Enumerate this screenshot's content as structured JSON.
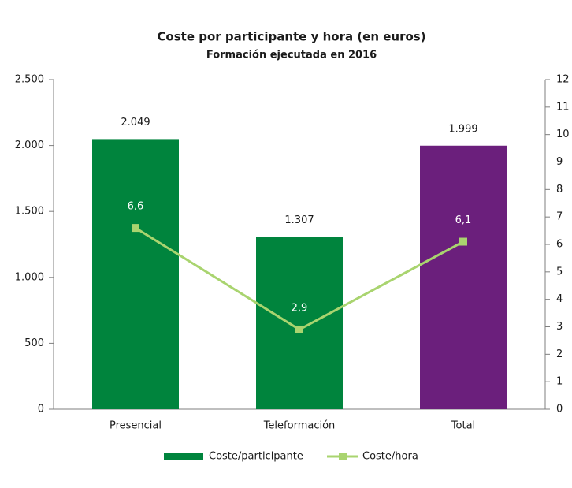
{
  "chart_data": {
    "type": "bar",
    "title": "Coste por participante y hora (en euros)",
    "subtitle": "Formación ejecutada en 2016",
    "categories": [
      "Presencial",
      "Teleformación",
      "Total"
    ],
    "series": [
      {
        "name": "Coste/participante",
        "color": "#00843d",
        "colors": [
          "#00843d",
          "#00843d",
          "#6b1f7c"
        ],
        "values": [
          2049,
          1307,
          1999
        ],
        "value_labels": [
          "2.049",
          "1.307",
          "1.999"
        ]
      },
      {
        "name": "Coste/hora",
        "type": "line",
        "axis": "y2",
        "color": "#a9d46f",
        "values": [
          6.6,
          2.9,
          6.1
        ],
        "value_labels": [
          "6,6",
          "2,9",
          "6,1"
        ]
      }
    ],
    "ylim": [
      0,
      2500
    ],
    "yticks": [
      0,
      500,
      {
        "value": 1000,
        "label": "1.000"
      },
      {
        "value": 1500,
        "label": "1.500"
      },
      {
        "value": 2000,
        "label": "2.000"
      },
      {
        "value": 2500,
        "label": "2.500"
      }
    ],
    "y2lim": [
      0,
      12
    ],
    "y2ticks": [
      0,
      1,
      2,
      3,
      4,
      5,
      6,
      7,
      8,
      9,
      10,
      11,
      12
    ],
    "legend": "bottom"
  }
}
